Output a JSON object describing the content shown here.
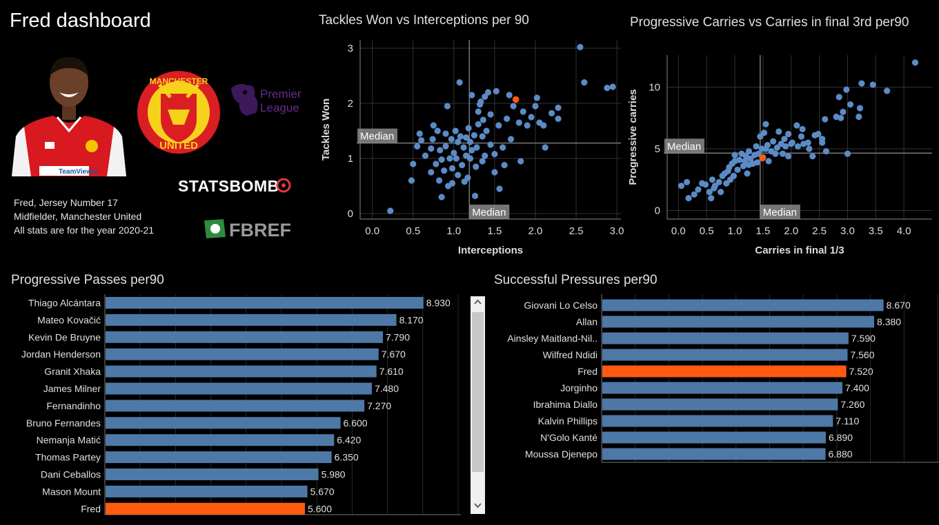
{
  "dashboard": {
    "title": "Fred dashboard",
    "info": [
      "Fred, Jersey Number 17",
      "Midfielder, Manchester United",
      "All stats are for the year 2020-21"
    ],
    "logos": {
      "club": "MANCHESTER UNITED",
      "club_top": "MANCHESTER",
      "club_bottom": "UNITED",
      "league_top": "Premier",
      "league_bottom": "League",
      "statsbomb": "STATSBOMB",
      "fbref": "FBREF",
      "shirt_sponsor": "TeamViewer"
    }
  },
  "colors": {
    "point": "#5b8bc6",
    "highlight": "#ff5a0f",
    "bar": "#4e79a7",
    "grid": "#333333",
    "median": "#7a7a7a"
  },
  "chart_data": [
    {
      "type": "scatter",
      "title": "Tackles Won vs Interceptions per 90",
      "xlabel": "Interceptions",
      "ylabel": "Tackles Won",
      "xlim": [
        -0.15,
        3.05
      ],
      "ylim": [
        -0.1,
        3.15
      ],
      "xticks": [
        "0.0",
        "0.5",
        "1.0",
        "1.5",
        "2.0",
        "2.5",
        "3.0"
      ],
      "yticks": [
        "0",
        "1",
        "2",
        "3"
      ],
      "grid": true,
      "median": {
        "x": 1.19,
        "y": 1.28,
        "label": "Median"
      },
      "highlight": {
        "name": "Fred",
        "x": 1.76,
        "y": 2.07
      },
      "points": [
        [
          0.22,
          0.05
        ],
        [
          0.48,
          0.6
        ],
        [
          0.5,
          0.9
        ],
        [
          0.55,
          1.22
        ],
        [
          0.58,
          1.45
        ],
        [
          0.6,
          1.33
        ],
        [
          0.65,
          1.05
        ],
        [
          0.72,
          0.75
        ],
        [
          0.72,
          1.18
        ],
        [
          0.74,
          1.35
        ],
        [
          0.75,
          1.6
        ],
        [
          0.78,
          0.9
        ],
        [
          0.8,
          1.5
        ],
        [
          0.82,
          0.6
        ],
        [
          0.83,
          1.15
        ],
        [
          0.85,
          0.3
        ],
        [
          0.85,
          0.98
        ],
        [
          0.88,
          0.78
        ],
        [
          0.9,
          1.22
        ],
        [
          0.9,
          1.45
        ],
        [
          0.92,
          1.95
        ],
        [
          0.93,
          0.5
        ],
        [
          0.95,
          1.0
        ],
        [
          0.97,
          1.35
        ],
        [
          0.98,
          0.55
        ],
        [
          0.98,
          0.82
        ],
        [
          1.0,
          1.1
        ],
        [
          1.02,
          1.5
        ],
        [
          1.03,
          1.0
        ],
        [
          1.05,
          0.7
        ],
        [
          1.05,
          1.3
        ],
        [
          1.07,
          2.38
        ],
        [
          1.08,
          1.4
        ],
        [
          1.1,
          0.88
        ],
        [
          1.12,
          1.2
        ],
        [
          1.13,
          0.58
        ],
        [
          1.15,
          1.05
        ],
        [
          1.15,
          1.38
        ],
        [
          1.17,
          0.65
        ],
        [
          1.18,
          1.55
        ],
        [
          1.2,
          1.0
        ],
        [
          1.2,
          1.3
        ],
        [
          1.22,
          1.15
        ],
        [
          1.22,
          2.15
        ],
        [
          1.25,
          1.42
        ],
        [
          1.26,
          0.32
        ],
        [
          1.27,
          0.85
        ],
        [
          1.28,
          1.2
        ],
        [
          1.3,
          1.85
        ],
        [
          1.3,
          1.62
        ],
        [
          1.32,
          1.98
        ],
        [
          1.33,
          2.03
        ],
        [
          1.35,
          0.95
        ],
        [
          1.35,
          1.4
        ],
        [
          1.36,
          1.7
        ],
        [
          1.38,
          1.05
        ],
        [
          1.38,
          2.12
        ],
        [
          1.4,
          1.5
        ],
        [
          1.42,
          2.2
        ],
        [
          1.45,
          1.8
        ],
        [
          1.45,
          1.25
        ],
        [
          1.5,
          1.08
        ],
        [
          1.5,
          0.75
        ],
        [
          1.52,
          2.22
        ],
        [
          1.55,
          1.6
        ],
        [
          1.56,
          0.45
        ],
        [
          1.6,
          1.2
        ],
        [
          1.62,
          0.88
        ],
        [
          1.65,
          1.72
        ],
        [
          1.68,
          2.15
        ],
        [
          1.7,
          1.35
        ],
        [
          1.73,
          1.95
        ],
        [
          1.8,
          1.65
        ],
        [
          1.82,
          0.95
        ],
        [
          1.85,
          1.85
        ],
        [
          1.9,
          1.6
        ],
        [
          1.95,
          1.75
        ],
        [
          2.0,
          1.95
        ],
        [
          2.02,
          2.1
        ],
        [
          2.05,
          1.65
        ],
        [
          2.1,
          1.6
        ],
        [
          2.12,
          1.2
        ],
        [
          2.2,
          1.82
        ],
        [
          2.28,
          1.72
        ],
        [
          2.28,
          1.92
        ],
        [
          2.55,
          3.02
        ],
        [
          2.6,
          2.38
        ],
        [
          2.88,
          2.28
        ],
        [
          2.95,
          2.3
        ]
      ]
    },
    {
      "type": "scatter",
      "title": "Progressive Carries vs Carries in final 3rd per90",
      "xlabel": "Carries in final 1/3",
      "ylabel": "Progressive carries",
      "xlim": [
        -0.2,
        4.5
      ],
      "ylim": [
        -0.7,
        12.6
      ],
      "xticks": [
        "0.0",
        "0.5",
        "1.0",
        "1.5",
        "2.0",
        "2.5",
        "3.0",
        "3.5",
        "4.0"
      ],
      "yticks": [
        "0",
        "5",
        "10"
      ],
      "grid": true,
      "median": {
        "x": 1.45,
        "y": 4.65,
        "label": "Median"
      },
      "highlight": {
        "name": "Fred",
        "x": 1.49,
        "y": 4.25
      },
      "points": [
        [
          0.05,
          2.0
        ],
        [
          0.15,
          2.3
        ],
        [
          0.18,
          1.0
        ],
        [
          0.28,
          1.3
        ],
        [
          0.35,
          1.7
        ],
        [
          0.42,
          2.2
        ],
        [
          0.48,
          2.1
        ],
        [
          0.55,
          1.5
        ],
        [
          0.58,
          1.0
        ],
        [
          0.6,
          2.5
        ],
        [
          0.63,
          1.8
        ],
        [
          0.65,
          2.0
        ],
        [
          0.72,
          2.3
        ],
        [
          0.75,
          1.5
        ],
        [
          0.78,
          2.8
        ],
        [
          0.82,
          3.0
        ],
        [
          0.85,
          2.2
        ],
        [
          0.88,
          3.2
        ],
        [
          0.9,
          3.5
        ],
        [
          0.92,
          2.5
        ],
        [
          0.95,
          3.8
        ],
        [
          0.98,
          2.8
        ],
        [
          1.0,
          4.0
        ],
        [
          1.0,
          4.5
        ],
        [
          1.05,
          3.3
        ],
        [
          1.08,
          4.1
        ],
        [
          1.12,
          4.6
        ],
        [
          1.15,
          3.6
        ],
        [
          1.18,
          4.0
        ],
        [
          1.2,
          4.4
        ],
        [
          1.22,
          3.0
        ],
        [
          1.25,
          4.8
        ],
        [
          1.25,
          3.7
        ],
        [
          1.28,
          4.2
        ],
        [
          1.32,
          3.8
        ],
        [
          1.35,
          4.5
        ],
        [
          1.38,
          5.2
        ],
        [
          1.4,
          3.9
        ],
        [
          1.42,
          4.6
        ],
        [
          1.45,
          6.0
        ],
        [
          1.48,
          5.0
        ],
        [
          1.5,
          4.3
        ],
        [
          1.52,
          6.3
        ],
        [
          1.55,
          5.0
        ],
        [
          1.55,
          7.0
        ],
        [
          1.58,
          5.3
        ],
        [
          1.6,
          4.0
        ],
        [
          1.65,
          4.8
        ],
        [
          1.68,
          5.6
        ],
        [
          1.72,
          4.6
        ],
        [
          1.75,
          5.1
        ],
        [
          1.78,
          6.4
        ],
        [
          1.82,
          5.4
        ],
        [
          1.85,
          4.6
        ],
        [
          1.88,
          5.8
        ],
        [
          1.9,
          5.2
        ],
        [
          1.95,
          4.4
        ],
        [
          1.95,
          6.2
        ],
        [
          2.0,
          5.4
        ],
        [
          2.02,
          5.5
        ],
        [
          2.1,
          6.9
        ],
        [
          2.12,
          5.2
        ],
        [
          2.18,
          6.0
        ],
        [
          2.2,
          6.6
        ],
        [
          2.22,
          5.4
        ],
        [
          2.3,
          5.5
        ],
        [
          2.32,
          5.0
        ],
        [
          2.38,
          4.4
        ],
        [
          2.42,
          6.1
        ],
        [
          2.48,
          6.2
        ],
        [
          2.55,
          5.8
        ],
        [
          2.55,
          5.5
        ],
        [
          2.6,
          7.4
        ],
        [
          2.62,
          4.8
        ],
        [
          2.8,
          7.6
        ],
        [
          2.85,
          9.2
        ],
        [
          2.88,
          7.5
        ],
        [
          2.92,
          8.0
        ],
        [
          2.98,
          9.8
        ],
        [
          3.05,
          8.6
        ],
        [
          3.0,
          4.6
        ],
        [
          3.2,
          7.6
        ],
        [
          3.22,
          8.3
        ],
        [
          3.25,
          10.3
        ],
        [
          3.45,
          10.2
        ],
        [
          3.7,
          9.7
        ],
        [
          4.2,
          12.0
        ]
      ]
    },
    {
      "type": "bar",
      "orientation": "horizontal",
      "title": "Progressive Passes per90",
      "categories": [
        "Thiago Alcántara",
        "Mateo Kovačić",
        "Kevin De Bruyne",
        "Jordan Henderson",
        "Granit Xhaka",
        "James Milner",
        "Fernandinho",
        "Bruno Fernandes",
        "Nemanja Matić",
        "Thomas Partey",
        "Dani Ceballos",
        "Mason Mount",
        "Fred"
      ],
      "values": [
        8.93,
        8.17,
        7.79,
        7.67,
        7.61,
        7.48,
        7.27,
        6.6,
        6.42,
        6.35,
        5.98,
        5.67,
        5.6
      ],
      "labels": [
        "8.930",
        "8.170",
        "7.790",
        "7.670",
        "7.610",
        "7.480",
        "7.270",
        "6.600",
        "6.420",
        "6.350",
        "5.980",
        "5.670",
        "5.600"
      ],
      "highlight": "Fred",
      "xlim": [
        0,
        10
      ]
    },
    {
      "type": "bar",
      "orientation": "horizontal",
      "title": "Successful Pressures per90",
      "categories": [
        "Giovani Lo Celso",
        "Allan",
        "Ainsley Maitland-Nil..",
        "Wilfred Ndidi",
        "Fred",
        "Jorginho",
        "Ibrahima Diallo",
        "Kalvin Phillips",
        "N'Golo Kanté",
        "Moussa Djenepo"
      ],
      "values": [
        8.67,
        8.38,
        7.59,
        7.56,
        7.52,
        7.4,
        7.26,
        7.11,
        6.89,
        6.88
      ],
      "labels": [
        "8.670",
        "8.380",
        "7.590",
        "7.560",
        "7.520",
        "7.400",
        "7.260",
        "7.110",
        "6.890",
        "6.880"
      ],
      "highlight": "Fred",
      "xlim": [
        0,
        10.4
      ]
    }
  ]
}
